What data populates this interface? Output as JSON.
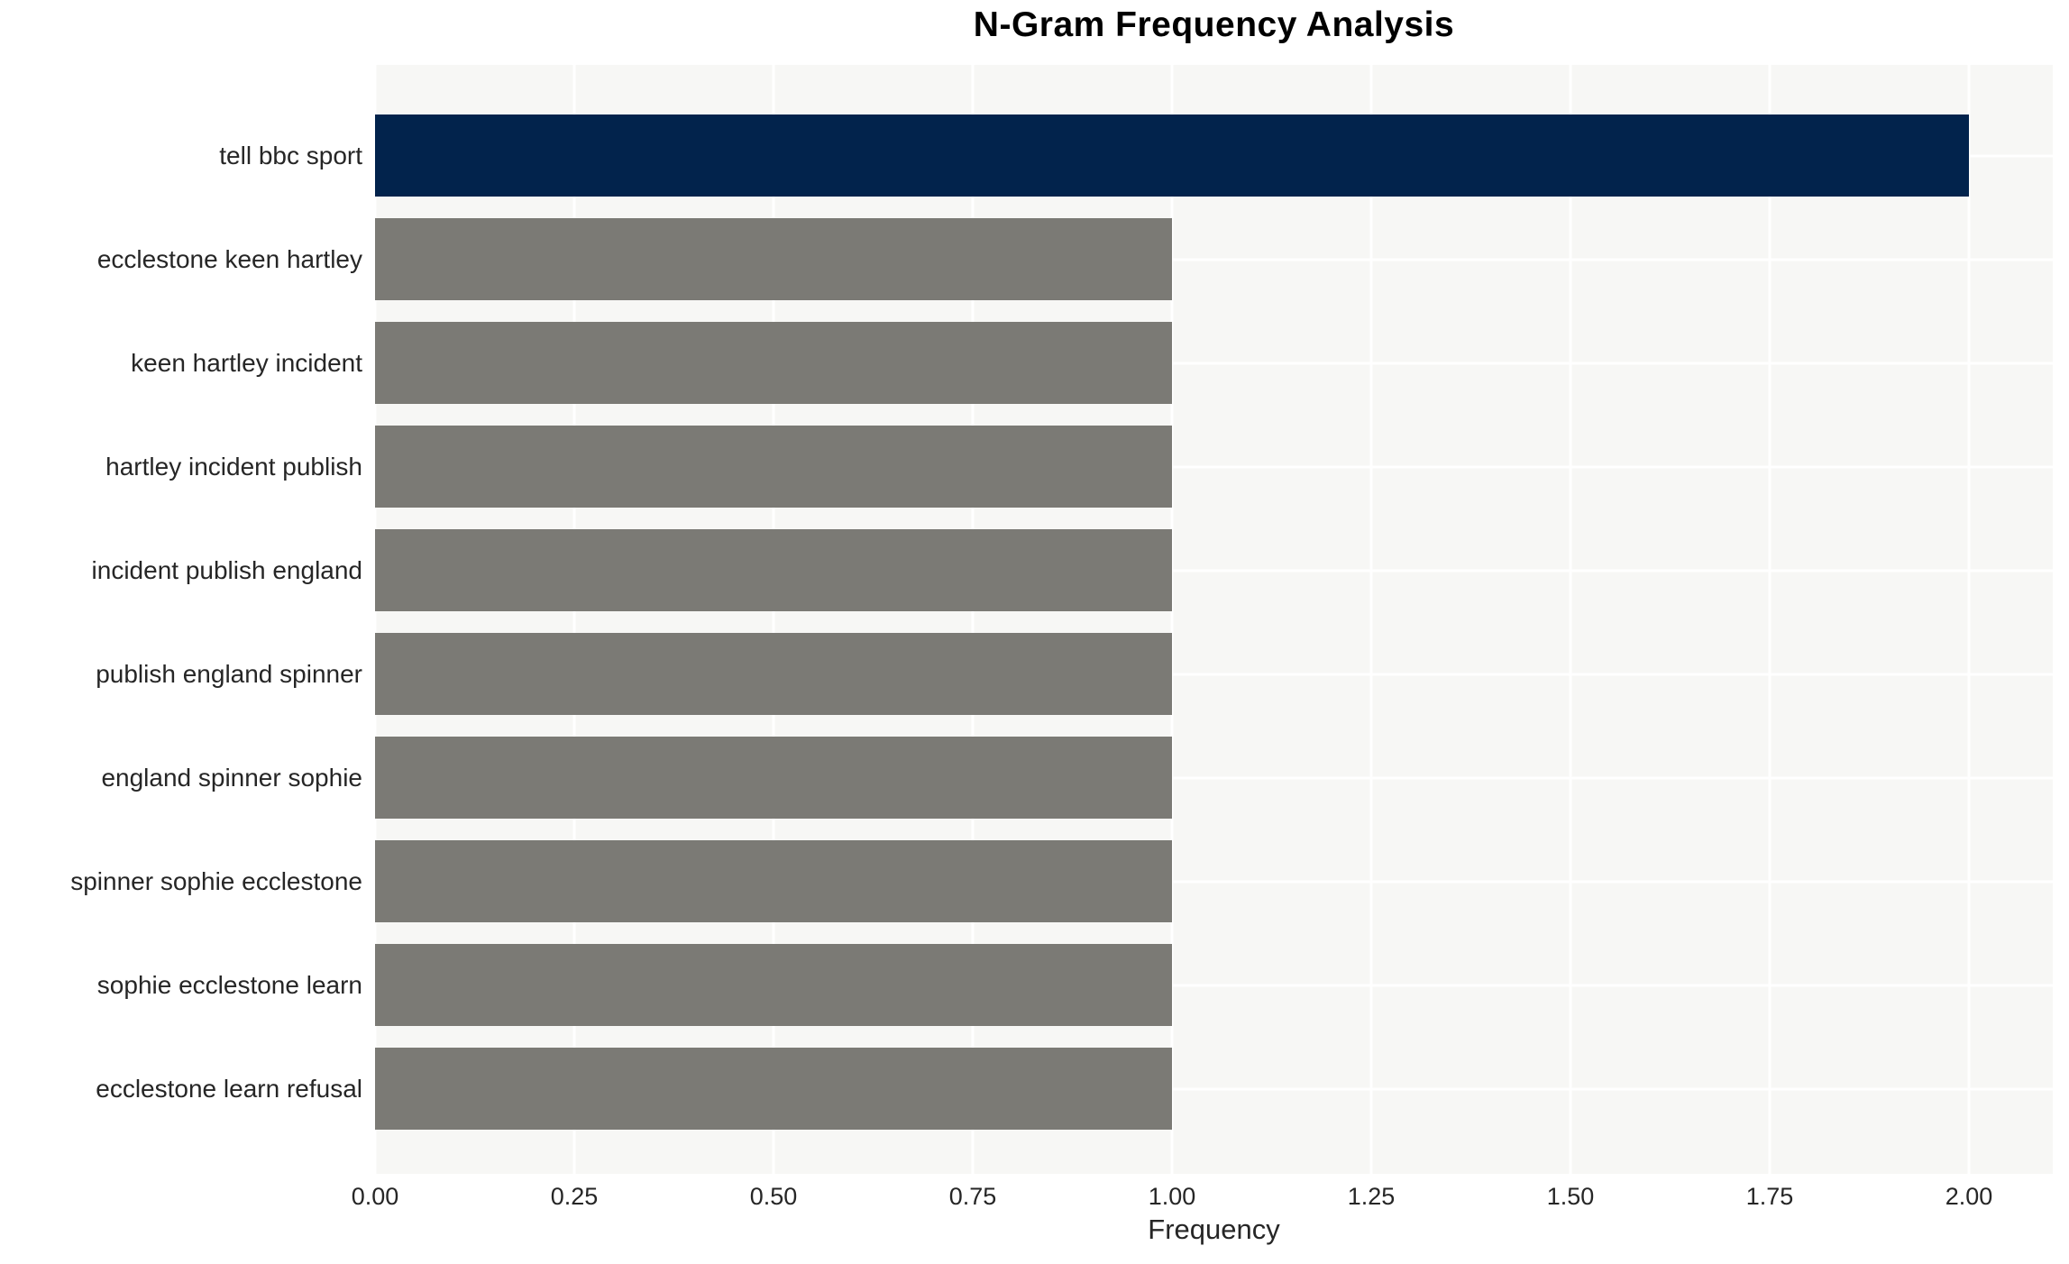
{
  "chart_data": {
    "type": "bar",
    "orientation": "horizontal",
    "title": "N-Gram Frequency Analysis",
    "xlabel": "Frequency",
    "ylabel": "",
    "categories": [
      "tell bbc sport",
      "ecclestone keen hartley",
      "keen hartley incident",
      "hartley incident publish",
      "incident publish england",
      "publish england spinner",
      "england spinner sophie",
      "spinner sophie ecclestone",
      "sophie ecclestone learn",
      "ecclestone learn refusal"
    ],
    "values": [
      2.0,
      1.0,
      1.0,
      1.0,
      1.0,
      1.0,
      1.0,
      1.0,
      1.0,
      1.0
    ],
    "bar_colors": [
      "#02234c",
      "#7b7a75",
      "#7b7a75",
      "#7b7a75",
      "#7b7a75",
      "#7b7a75",
      "#7b7a75",
      "#7b7a75",
      "#7b7a75",
      "#7b7a75"
    ],
    "xticks": [
      "0.00",
      "0.25",
      "0.50",
      "0.75",
      "1.00",
      "1.25",
      "1.50",
      "1.75",
      "2.00"
    ],
    "xtick_values": [
      0,
      0.25,
      0.5,
      0.75,
      1.0,
      1.25,
      1.5,
      1.75,
      2.0
    ],
    "xlim": [
      0,
      2.105
    ],
    "grid": true,
    "legend_position": "none",
    "colors": {
      "highlight_bar": "#02234c",
      "default_bar": "#7b7a75",
      "plot_background": "#f7f7f5",
      "grid_line": "#ffffff",
      "text": "#262626",
      "title_text": "#000000",
      "figure_background": "#ffffff"
    }
  }
}
